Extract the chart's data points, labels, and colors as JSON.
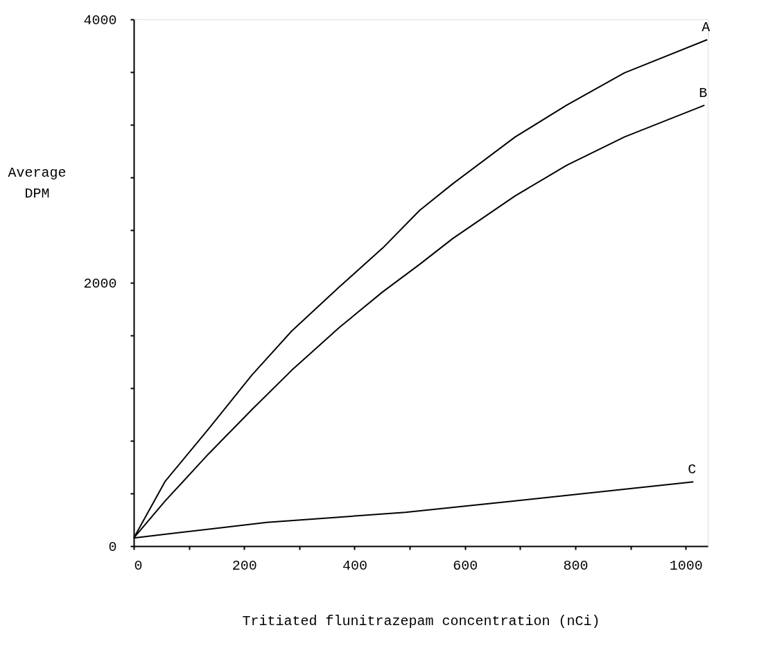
{
  "chart_data": {
    "type": "line",
    "xlabel": "Tritiated flunitrazepam concentration (nCi)",
    "ylabel": "Average DPM",
    "xlim": [
      0,
      1040
    ],
    "ylim": [
      0,
      4000
    ],
    "xticks": [
      0,
      {
        "value": 100,
        "label": null
      },
      200,
      {
        "value": 300,
        "label": null
      },
      400,
      {
        "value": 500,
        "label": null
      },
      600,
      {
        "value": 700,
        "label": null
      },
      800,
      {
        "value": 900,
        "label": null
      },
      1000
    ],
    "yticks": [
      0,
      {
        "value": 400,
        "label": null
      },
      {
        "value": 800,
        "label": null
      },
      {
        "value": 1200,
        "label": null
      },
      {
        "value": 1600,
        "label": null
      },
      2000,
      {
        "value": 2400,
        "label": null
      },
      {
        "value": 2800,
        "label": null
      },
      {
        "value": 3200,
        "label": null
      },
      {
        "value": 3600,
        "label": null
      },
      4000
    ],
    "grid": false,
    "legend": false,
    "marker": "none",
    "line_style": "solid",
    "series": [
      {
        "name": "A",
        "color": "#000000",
        "x": [
          0,
          57,
          136,
          214,
          286,
          372,
          451,
          518,
          578,
          691,
          784,
          889,
          1039
        ],
        "values": [
          62,
          493,
          893,
          1299,
          1633,
          1967,
          2264,
          2550,
          2752,
          3107,
          3348,
          3594,
          3846
        ]
      },
      {
        "name": "B",
        "color": "#000000",
        "x": [
          0,
          57,
          136,
          214,
          286,
          372,
          451,
          518,
          578,
          691,
          784,
          889,
          1034
        ],
        "values": [
          62,
          344,
          703,
          1037,
          1335,
          1659,
          1931,
          2140,
          2336,
          2660,
          2891,
          3107,
          3348
        ]
      },
      {
        "name": "C",
        "color": "#000000",
        "x": [
          0,
          241,
          492,
          691,
          1014
        ],
        "values": [
          62,
          180,
          257,
          344,
          488
        ]
      }
    ]
  }
}
